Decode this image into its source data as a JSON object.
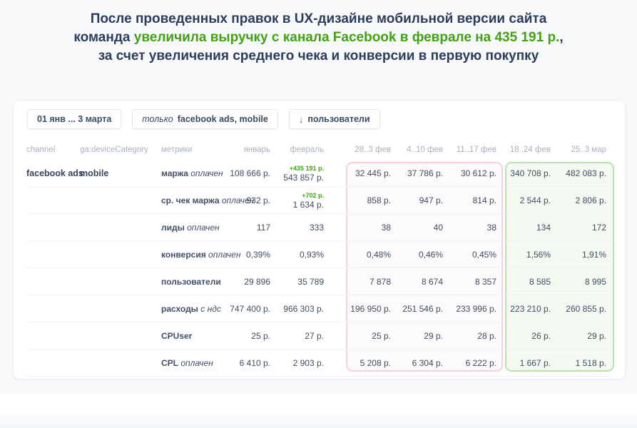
{
  "headline": {
    "line1": "После проведенных правок в UX-дизайне мобильной версии сайта",
    "line2_prefix": "команда ",
    "line2_highlight": "увеличила выручку с канала Facebook в феврале на 435 191 р.",
    "line2_suffix": ",",
    "line3": "за счет увеличения среднего чека и конверсии в первую покупку",
    "highlight_color": "#43a116"
  },
  "filters": {
    "date_range": "01 янв ... 3 марта",
    "segment_prefix": "только",
    "segment_value": "facebook ads, mobile",
    "sort_icon": "↓",
    "sort_label": "пользователи"
  },
  "table": {
    "dimension_headers": [
      "channel",
      "ga:deviceCategory"
    ],
    "dimension_values": [
      "facebook ads",
      "mobile"
    ],
    "metric_header": "метрики",
    "period_headers": [
      "январь",
      "февраль",
      "28..3 фев",
      "4..10 фев",
      "11..17 фев",
      "18..24 фев",
      "25..3 мар"
    ],
    "rows": [
      {
        "metric": "маржа",
        "qualifier": "оплачен",
        "delta": "+435 191 р.",
        "values": [
          "108 666 р.",
          "543 857 р.",
          "32 445 р.",
          "37 786 р.",
          "30 612 р.",
          "340 708 р.",
          "482 083 р."
        ]
      },
      {
        "metric": "ср. чек маржа",
        "qualifier": "оплачен",
        "delta": "+702 р.",
        "values": [
          "932 р.",
          "1 634 р.",
          "858 р.",
          "947 р.",
          "814 р.",
          "2 544 р.",
          "2 806 р."
        ]
      },
      {
        "metric": "лиды",
        "qualifier": "оплачен",
        "delta": "",
        "values": [
          "117",
          "333",
          "38",
          "40",
          "38",
          "134",
          "172"
        ]
      },
      {
        "metric": "конверсия",
        "qualifier": "оплачен",
        "delta": "",
        "values": [
          "0,39%",
          "0,93%",
          "0,48%",
          "0,46%",
          "0,45%",
          "1,56%",
          "1,91%"
        ]
      },
      {
        "metric": "пользователи",
        "qualifier": "",
        "delta": "",
        "values": [
          "29 896",
          "35 789",
          "7 878",
          "8 674",
          "8 357",
          "8 585",
          "8 995"
        ]
      },
      {
        "metric": "расходы",
        "qualifier": "с ндс",
        "delta": "",
        "values": [
          "747 400 р.",
          "966 303 р.",
          "196 950 р.",
          "251 546 р.",
          "233 996 р.",
          "223 210 р.",
          "260 855 р."
        ]
      },
      {
        "metric": "CPUser",
        "qualifier": "",
        "delta": "",
        "values": [
          "25 р.",
          "27 р.",
          "25 р.",
          "29 р.",
          "28 р.",
          "26 р.",
          "29 р."
        ]
      },
      {
        "metric": "CPL",
        "qualifier": "оплачен",
        "delta": "",
        "values": [
          "6 410 р.",
          "2 903 р.",
          "5 208 р.",
          "6 304 р.",
          "6 222 р.",
          "1 667 р.",
          "1 518 р."
        ]
      }
    ],
    "highlight_groups": [
      {
        "name": "weeks-before",
        "border": "#f8cfe2",
        "fill": "#fdfafc"
      },
      {
        "name": "weeks-after",
        "border": "#b9e4ae",
        "fill": "#f4faf1"
      }
    ],
    "delta_color": "#3aa80d"
  }
}
